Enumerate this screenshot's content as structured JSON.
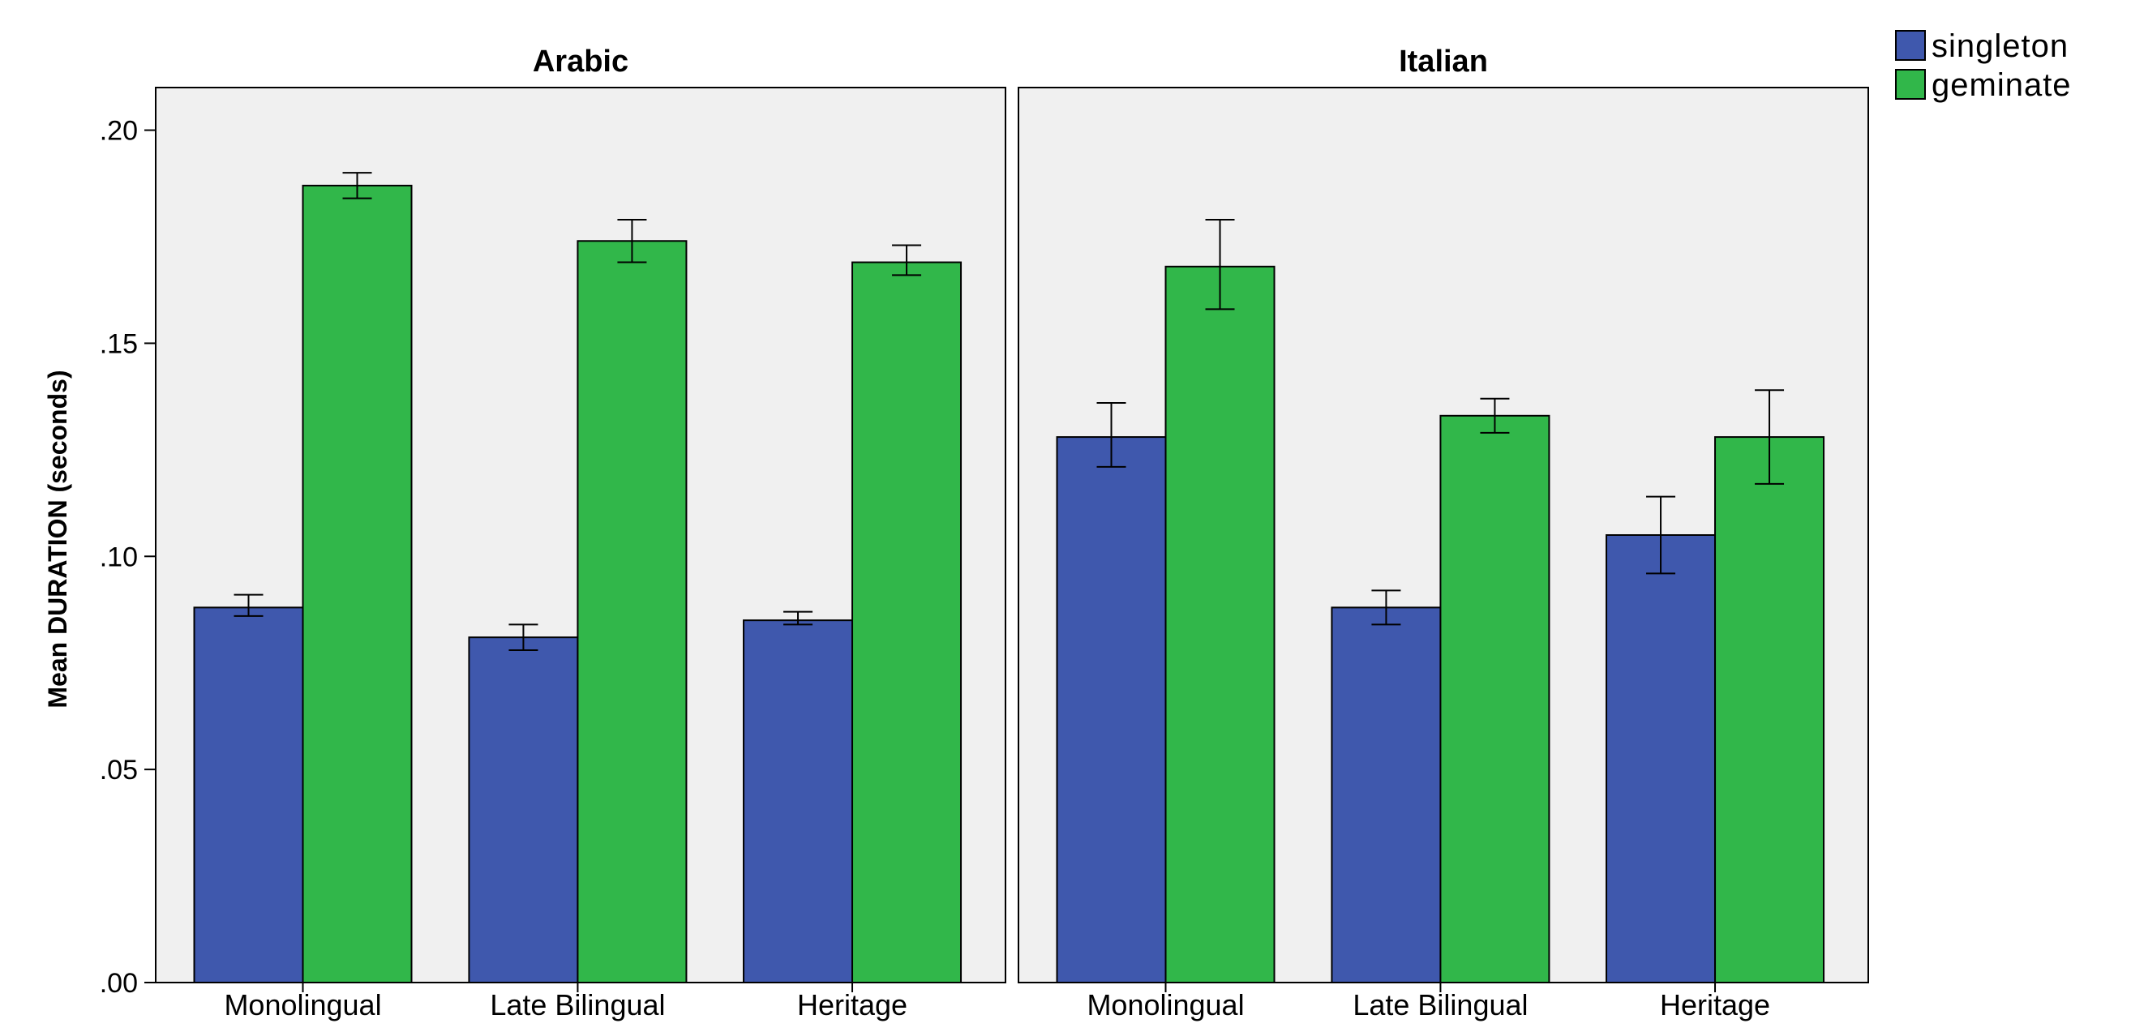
{
  "colors": {
    "singleton": "#3f58ad",
    "geminate": "#31b74a",
    "panel_bg": "#f0f0f0",
    "axis": "#000000"
  },
  "chart_data": {
    "type": "bar",
    "ylabel": "Mean DURATION (seconds)",
    "ylim": [
      0,
      0.21
    ],
    "y_ticks": [
      0,
      0.05,
      0.1,
      0.15,
      0.2
    ],
    "y_tick_labels": [
      ".00",
      ".05",
      ".10",
      ".15",
      ".20"
    ],
    "grid": false,
    "error_bars": true,
    "legend": {
      "placement": "top-right",
      "entries": [
        "singleton",
        "geminate"
      ]
    },
    "categories": [
      "Monolingual",
      "Late Bilingual",
      "Heritage"
    ],
    "panels": [
      {
        "title": "Arabic",
        "series": [
          {
            "name": "singleton",
            "values": [
              0.088,
              0.081,
              0.085
            ],
            "err_low": [
              0.086,
              0.078,
              0.084
            ],
            "err_high": [
              0.091,
              0.084,
              0.087
            ]
          },
          {
            "name": "geminate",
            "values": [
              0.187,
              0.174,
              0.169
            ],
            "err_low": [
              0.184,
              0.169,
              0.166
            ],
            "err_high": [
              0.19,
              0.179,
              0.173
            ]
          }
        ]
      },
      {
        "title": "Italian",
        "series": [
          {
            "name": "singleton",
            "values": [
              0.128,
              0.088,
              0.105
            ],
            "err_low": [
              0.121,
              0.084,
              0.096
            ],
            "err_high": [
              0.136,
              0.092,
              0.114
            ]
          },
          {
            "name": "geminate",
            "values": [
              0.168,
              0.133,
              0.128
            ],
            "err_low": [
              0.158,
              0.129,
              0.117
            ],
            "err_high": [
              0.179,
              0.137,
              0.139
            ]
          }
        ]
      }
    ]
  }
}
